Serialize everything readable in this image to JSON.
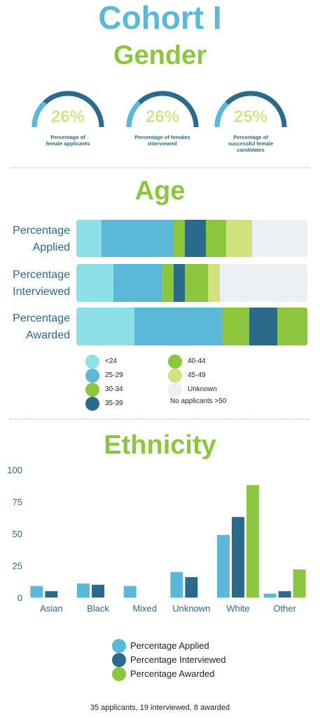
{
  "page": {
    "title": "Cohort I",
    "gender_heading": "Gender",
    "age_heading": "Age",
    "ethnicity_heading": "Ethnicity",
    "footer": "35 applicants, 19 interviewed, 8 awarded"
  },
  "colors": {
    "title_blue": "#5ab8d8",
    "heading_green": "#8cc63f",
    "dark_blue": "#2b6a8a",
    "gauge_track": "#5ab8d8",
    "gauge_text": "#d7e38a"
  },
  "gender": [
    {
      "value": "26%",
      "fraction": 0.26,
      "label_line1": "Percentage of",
      "label_line2": "female applicants",
      "label_line3": ""
    },
    {
      "value": "26%",
      "fraction": 0.26,
      "label_line1": "Percentage of females",
      "label_line2": "interviewed",
      "label_line3": ""
    },
    {
      "value": "25%",
      "fraction": 0.25,
      "label_line1": "Percentage of",
      "label_line2": "successful female",
      "label_line3": "candidates"
    }
  ],
  "age": {
    "rows": [
      {
        "label_line1": "Percentage",
        "label_line2": "Applied",
        "segments": [
          11,
          31,
          5,
          9,
          9,
          11,
          24
        ]
      },
      {
        "label_line1": "Percentage",
        "label_line2": "Interviewed",
        "segments": [
          16,
          21,
          5,
          5,
          10,
          5,
          38
        ]
      },
      {
        "label_line1": "Percentage",
        "label_line2": "Awarded",
        "segments": [
          25,
          38,
          12,
          12,
          13,
          0,
          0
        ]
      }
    ],
    "category_colors": [
      "#8ee0e8",
      "#5ab8d8",
      "#8cc63f",
      "#2b6a8a",
      "#8cc63f",
      "#d0e27e",
      "#edf0f3"
    ],
    "awarded_order_note": "",
    "legend": [
      {
        "label": "<24",
        "color": "#8ee0e8"
      },
      {
        "label": "25-29",
        "color": "#5ab8d8"
      },
      {
        "label": "30-34",
        "color": "#8cc63f"
      },
      {
        "label": "35-39",
        "color": "#2b6a8a"
      },
      {
        "label": "40-44",
        "color": "#8cc63f"
      },
      {
        "label": "45-49",
        "color": "#d0e27e"
      },
      {
        "label": "Unknown",
        "color": "#edf0f3"
      }
    ],
    "note": "No applicants >50"
  },
  "chart_data": {
    "type": "bar",
    "categories": [
      "Asian",
      "Black",
      "Mixed",
      "Unknown",
      "White",
      "Other"
    ],
    "series": [
      {
        "name": "Percentage Applied",
        "color": "#5ab8d8",
        "values": [
          9,
          11,
          9,
          20,
          49,
          3
        ]
      },
      {
        "name": "Percentage Interviewed",
        "color": "#2b6a8a",
        "values": [
          5,
          10,
          0,
          16,
          63,
          5
        ]
      },
      {
        "name": "Percentage Awarded",
        "color": "#8cc63f",
        "values": [
          0,
          0,
          0,
          0,
          88,
          22
        ]
      }
    ],
    "yticks": [
      0,
      25,
      50,
      75,
      100
    ],
    "ylim": [
      0,
      100
    ],
    "grid": false,
    "legend_position": "bottom-center"
  }
}
